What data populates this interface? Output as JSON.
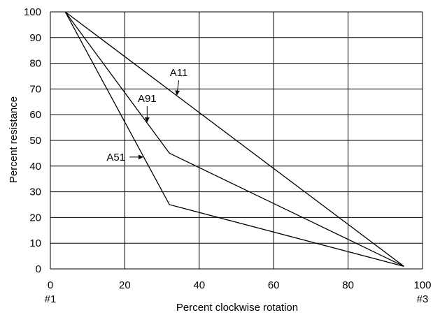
{
  "chart_data": {
    "type": "line",
    "xlabel": "Percent clockwise rotation",
    "ylabel": "Percent resistance",
    "xlim": [
      0,
      100
    ],
    "ylim": [
      0,
      100
    ],
    "x_ticks": [
      0,
      20,
      40,
      60,
      80,
      100
    ],
    "y_ticks": [
      0,
      10,
      20,
      30,
      40,
      50,
      60,
      70,
      80,
      90,
      100
    ],
    "x_tick_labels": [
      "0",
      "20",
      "40",
      "60",
      "80",
      "100"
    ],
    "y_tick_labels": [
      "0",
      "10",
      "20",
      "30",
      "40",
      "50",
      "60",
      "70",
      "80",
      "90",
      "100"
    ],
    "x_end_labels": {
      "left": "#1",
      "right": "#3"
    },
    "grid": true,
    "line_color": "#000000",
    "series": [
      {
        "name": "A11",
        "x": [
          4,
          95
        ],
        "y": [
          100,
          1
        ]
      },
      {
        "name": "A91",
        "x": [
          4,
          32,
          95
        ],
        "y": [
          100,
          45,
          1
        ]
      },
      {
        "name": "A51",
        "x": [
          4,
          32,
          95
        ],
        "y": [
          100,
          25,
          1
        ]
      }
    ],
    "annotations": [
      {
        "text": "A11",
        "series": "A11",
        "point_x": 34,
        "point_y": 67.5,
        "label_x": 34.5,
        "label_y": 75
      },
      {
        "text": "A91",
        "series": "A91",
        "point_x": 26,
        "point_y": 57,
        "label_x": 26,
        "label_y": 65
      },
      {
        "text": "A51",
        "series": "A51",
        "point_x": 25,
        "point_y": 43.5,
        "label_x": 16,
        "label_y": 43.5
      }
    ]
  }
}
